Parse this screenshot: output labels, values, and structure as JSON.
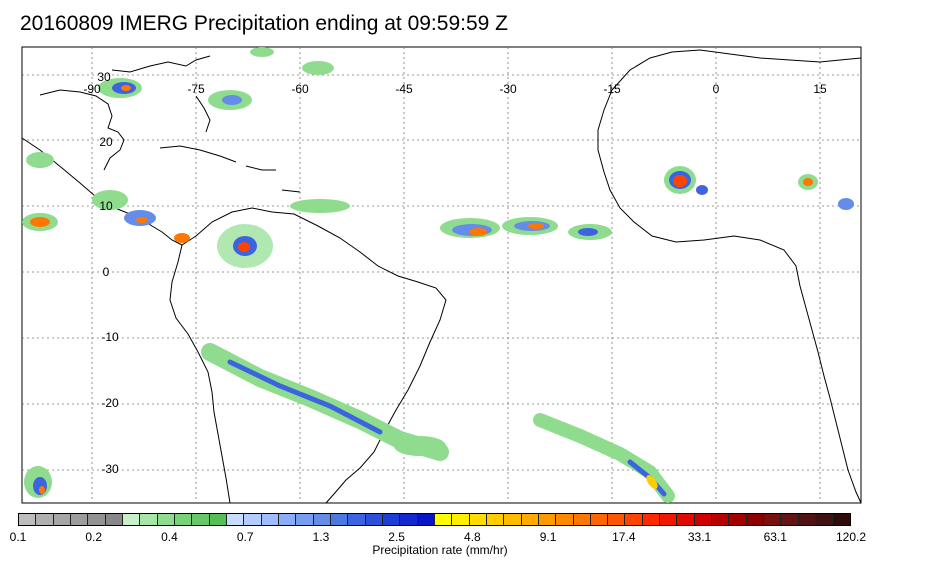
{
  "title": "20160809 IMERG Precipitation ending at 09:59:59 Z",
  "longitude_labels": [
    "-90",
    "-75",
    "-60",
    "-45",
    "-30",
    "-15",
    "0",
    "15"
  ],
  "latitude_labels": [
    "30",
    "20",
    "10",
    "0",
    "-10",
    "-20",
    "-30"
  ],
  "colorbar": {
    "label": "Precipitation rate (mm/hr)",
    "tick_labels": [
      "0.1",
      "0.2",
      "0.4",
      "0.7",
      "1.3",
      "2.5",
      "4.8",
      "9.1",
      "17.4",
      "33.1",
      "63.1",
      "120.2"
    ],
    "colors": [
      "#bdbdbd",
      "#b0b0b0",
      "#a6a6a6",
      "#9c9c9c",
      "#929292",
      "#888888",
      "#c8f0c8",
      "#a8e6a8",
      "#8fdc8f",
      "#78d278",
      "#66c866",
      "#55be55",
      "#c8dcff",
      "#b4ccff",
      "#a0bcff",
      "#8cacf8",
      "#789cf0",
      "#648ce8",
      "#4c78e4",
      "#3c64e0",
      "#2c50dc",
      "#1e3cd8",
      "#1428d0",
      "#0a14c8",
      "#ffff00",
      "#ffee00",
      "#ffdd00",
      "#ffcc00",
      "#ffbb00",
      "#ffaa00",
      "#ff9900",
      "#ff8800",
      "#ff7700",
      "#ff6600",
      "#ff5500",
      "#ff4400",
      "#ff2a00",
      "#f01800",
      "#e00a00",
      "#cc0000",
      "#b80000",
      "#a40000",
      "#8c0000",
      "#781010",
      "#641414",
      "#521212",
      "#401010",
      "#2e0a0a"
    ]
  }
}
